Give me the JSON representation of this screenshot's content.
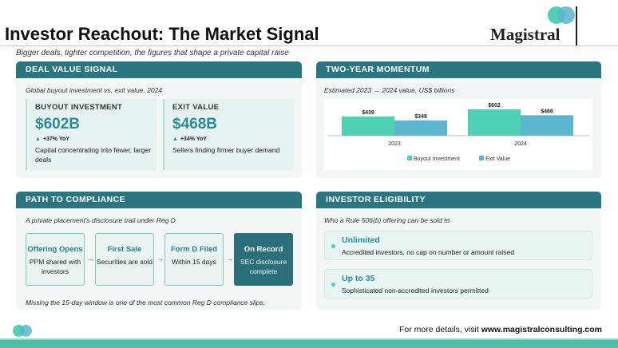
{
  "header": {
    "title": "Investor Reachout: The Market Signal",
    "subtitle": "Bigger deals, tighter competition, the figures that shape a private capital raise",
    "logo": "Magistral"
  },
  "deal_value": {
    "heading": "DEAL VALUE SIGNAL",
    "note": "Global buyout investment vs. exit value, 2024",
    "buyout": {
      "title": "BUYOUT INVESTMENT",
      "value": "$602B",
      "delta": "+37% YoY",
      "desc": "Capital concentrating into fewer, larger deals"
    },
    "exit": {
      "title": "EXIT VALUE",
      "value": "$468B",
      "delta": "+34% YoY",
      "desc": "Sellers finding firmer buyer demand"
    }
  },
  "momentum": {
    "heading": "TWO-YEAR MOMENTUM",
    "note": "Estimated 2023 → 2024 value, US$ billions"
  },
  "chart_data": {
    "type": "bar",
    "categories": [
      "2023",
      "2024"
    ],
    "series": [
      {
        "name": "Buyout Investment",
        "values": [
          439,
          602
        ],
        "color": "#4fd1b5"
      },
      {
        "name": "Exit Value",
        "values": [
          349,
          468
        ],
        "color": "#5bb5cf"
      }
    ],
    "data_labels": [
      [
        "$439",
        "$602"
      ],
      [
        "$349",
        "$468"
      ]
    ],
    "ylim": [
      0,
      620
    ],
    "legend": "bottom",
    "grid": false
  },
  "compliance": {
    "heading": "PATH TO COMPLIANCE",
    "note": "A private placement's disclosure trail under Reg D",
    "steps": [
      {
        "title": "Offering Opens",
        "desc": "PPM shared with investors"
      },
      {
        "title": "First Sale",
        "desc": "Securities are sold"
      },
      {
        "title": "Form D Filed",
        "desc": "Within 15 days"
      },
      {
        "title": "On Record",
        "desc": "SEC disclosure complete"
      }
    ],
    "arrow": "→",
    "footnote": "Missing the 15-day window is one of the most common Reg D compliance slips."
  },
  "eligibility": {
    "heading": "INVESTOR ELIGIBILITY",
    "note": "Who a Rule 506(b) offering can be sold to",
    "items": [
      {
        "title": "Unlimited",
        "desc": "Accredited investors, no cap on number or amount raised"
      },
      {
        "title": "Up to 35",
        "desc": "Sophisticated non-accredited investors permitted"
      }
    ]
  },
  "footer": {
    "prefix": "For more details, visit ",
    "url": "www.magistralconsulting.com"
  },
  "colors": {
    "teal_header": "#2a7680",
    "mint": "#4fd1b5",
    "sky": "#5bb5cf",
    "value_text": "#2a8b94"
  }
}
